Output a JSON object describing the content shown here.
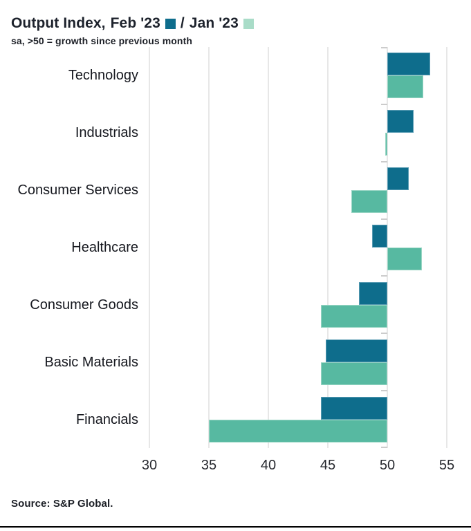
{
  "header": {
    "title_prefix": "Output Index,",
    "legend_separator": "/",
    "legend": [
      {
        "label": "Feb '23",
        "swatch_color": "#0e6d8c"
      },
      {
        "label": "Jan '23",
        "swatch_color": "#a9dcc8"
      }
    ],
    "subtitle": "sa, >50 = growth since previous month"
  },
  "chart_data": {
    "type": "bar",
    "orientation": "horizontal",
    "title": "Output Index, Feb '23 / Jan '23",
    "subtitle": "sa, >50 = growth since previous month",
    "categories": [
      "Technology",
      "Industrials",
      "Consumer Services",
      "Healthcare",
      "Consumer Goods",
      "Basic Materials",
      "Financials"
    ],
    "series": [
      {
        "name": "Feb '23",
        "color": "#0e6d8c",
        "border_color": "#5a9cb3",
        "values": [
          53.6,
          52.2,
          51.8,
          48.7,
          47.6,
          44.8,
          44.4
        ]
      },
      {
        "name": "Jan '23",
        "color": "#57b9a1",
        "border_color": "#9ad6c5",
        "values": [
          53.0,
          49.8,
          47.0,
          52.9,
          44.4,
          44.4,
          35.0
        ]
      }
    ],
    "baseline": 50,
    "xlim": [
      30,
      55
    ],
    "xticks": [
      30,
      35,
      40,
      45,
      50,
      55
    ],
    "grid": true,
    "legend_position": "top"
  },
  "footer": {
    "source": "Source: S&P Global."
  },
  "colors": {
    "feb_bar": "#0e6d8c",
    "jan_bar": "#57b9a1",
    "jan_legend_swatch": "#a9dcc8",
    "gridline": "#e7e7e7",
    "axis_tick": "#cccccc",
    "text": "#16181f"
  }
}
